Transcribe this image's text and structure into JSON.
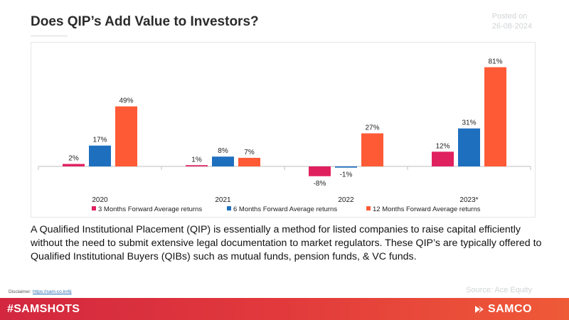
{
  "header": {
    "title": "Does QIP’s Add Value to Investors?",
    "posted_label": "Posted on",
    "posted_date": "26-08-2024"
  },
  "chart_data": {
    "type": "bar",
    "title": "",
    "categories": [
      "2020",
      "2021",
      "2022",
      "2023*"
    ],
    "series": [
      {
        "name": "3 Months Forward Average returns",
        "color": "#e0215f",
        "values": [
          2,
          1,
          -8,
          12
        ],
        "labels": [
          "2%",
          "1%",
          "-8%",
          "12%"
        ]
      },
      {
        "name": "6 Months Forward Average returns",
        "color": "#1f6fbf",
        "values": [
          17,
          8,
          -1,
          31
        ],
        "labels": [
          "17%",
          "8%",
          "-1%",
          "31%"
        ]
      },
      {
        "name": "12 Months Forward Average returns",
        "color": "#ff5a36",
        "values": [
          49,
          7,
          27,
          81
        ],
        "labels": [
          "49%",
          "7%",
          "27%",
          "81%"
        ]
      }
    ],
    "xlabel": "",
    "ylabel": "",
    "ylim": [
      -12,
      90
    ],
    "grid": false,
    "legend_position": "bottom"
  },
  "description": "A Qualified Institutional Placement (QIP) is essentially a method for listed companies to raise capital efficiently without the need to submit extensive legal documentation to market regulators. These QIP’s are typically offered to Qualified Institutional Buyers (QIBs) such as mutual funds, pension funds, & VC funds.",
  "footer": {
    "disclaimer_label": "Disclaimer:",
    "disclaimer_link": "https://sam-co.in/6j",
    "source": "Source: Ace Equity",
    "hashtag": "#SAMSHOTS",
    "brand": "SAMCO"
  }
}
